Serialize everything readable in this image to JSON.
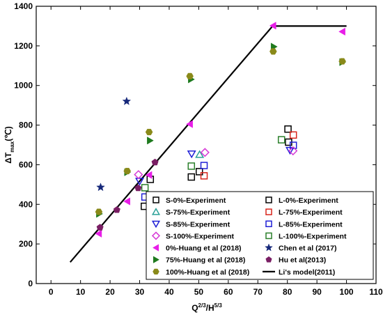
{
  "chart_data": {
    "type": "scatter",
    "xlabel_parts": {
      "base": "Q",
      "sup1": "2/3",
      "mid": "/H",
      "sup2": "5/3"
    },
    "ylabel_parts": {
      "delta": "ΔT",
      "sub": "max",
      "unit": "(℃)"
    },
    "xlim": [
      -5,
      110
    ],
    "ylim": [
      0,
      1400
    ],
    "xticks": [
      0,
      10,
      20,
      30,
      40,
      50,
      60,
      70,
      80,
      90,
      100,
      110
    ],
    "yticks": [
      0,
      200,
      400,
      600,
      800,
      1000,
      1200,
      1400
    ],
    "grid": false,
    "legend_position": "lower-center-right",
    "series": [
      {
        "name": "S-0%-Experiment",
        "marker": "square-open",
        "color": "#000000",
        "points": [
          [
            31.6,
            390
          ],
          [
            33.6,
            526
          ],
          [
            47.5,
            538
          ],
          [
            50.2,
            565
          ]
        ]
      },
      {
        "name": "L-0%-Experiment",
        "marker": "square-open",
        "color": "#000000",
        "points": [
          [
            80.2,
            780
          ],
          [
            80.4,
            714
          ]
        ]
      },
      {
        "name": "S-75%-Experiment",
        "marker": "triangle-up-open",
        "color": "#2aa198",
        "points": [
          [
            50.3,
            651
          ]
        ]
      },
      {
        "name": "L-75%-Experiment",
        "marker": "square-open",
        "color": "#d9261c",
        "points": [
          [
            51.8,
            544
          ],
          [
            82.0,
            750
          ]
        ]
      },
      {
        "name": "S-85%-Experiment",
        "marker": "triangle-down-open",
        "color": "#1f1fd6",
        "points": [
          [
            30.0,
            517
          ],
          [
            47.6,
            655
          ],
          [
            80.9,
            673
          ]
        ]
      },
      {
        "name": "L-85%-Experiment",
        "marker": "square-open",
        "color": "#1f1fd6",
        "points": [
          [
            31.8,
            437
          ],
          [
            51.8,
            596
          ],
          [
            82.0,
            698
          ]
        ]
      },
      {
        "name": "S-100%-Experiment",
        "marker": "diamond-open",
        "color": "#d63ad6",
        "points": [
          [
            29.6,
            550
          ],
          [
            52.1,
            662
          ],
          [
            81.9,
            670
          ]
        ]
      },
      {
        "name": "L-100%-Experiment",
        "marker": "square-open",
        "color": "#2a7f2a",
        "points": [
          [
            31.8,
            484
          ],
          [
            47.5,
            593
          ],
          [
            78.0,
            726
          ]
        ]
      },
      {
        "name": "0%-Huang et al (2018)",
        "marker": "triangle-left",
        "color": "#e81ee8",
        "points": [
          [
            16.2,
            252
          ],
          [
            25.8,
            415
          ],
          [
            33.2,
            548
          ],
          [
            47.0,
            805
          ],
          [
            75.2,
            1302
          ],
          [
            98.6,
            1272
          ]
        ]
      },
      {
        "name": "Chen et al (2017)",
        "marker": "star",
        "color": "#16287a",
        "points": [
          [
            16.8,
            486
          ],
          [
            25.6,
            920
          ]
        ]
      },
      {
        "name": "75%-Huang et al (2018)",
        "marker": "triangle-right",
        "color": "#1e7a1e",
        "points": [
          [
            16.3,
            352
          ],
          [
            25.8,
            562
          ],
          [
            33.5,
            722
          ],
          [
            47.4,
            1031
          ],
          [
            75.4,
            1196
          ],
          [
            98.6,
            1118
          ]
        ]
      },
      {
        "name": "Hu et al(2013)",
        "marker": "pentagon",
        "color": "#7a1e64",
        "points": [
          [
            16.6,
            283
          ],
          [
            22.3,
            372
          ],
          [
            29.5,
            482
          ],
          [
            35.2,
            612
          ]
        ]
      },
      {
        "name": "100%-Huang et al (2018)",
        "marker": "hexagon",
        "color": "#8a8a1a",
        "points": [
          [
            16.2,
            362
          ],
          [
            25.8,
            568
          ],
          [
            33.2,
            765
          ],
          [
            47.0,
            1047
          ],
          [
            75.2,
            1172
          ],
          [
            98.6,
            1122
          ]
        ]
      },
      {
        "name": "Li's model(2011)",
        "marker": "line",
        "color": "#000000",
        "line": [
          [
            6.5,
            108
          ],
          [
            75,
            1300
          ],
          [
            100,
            1300
          ]
        ]
      }
    ]
  }
}
